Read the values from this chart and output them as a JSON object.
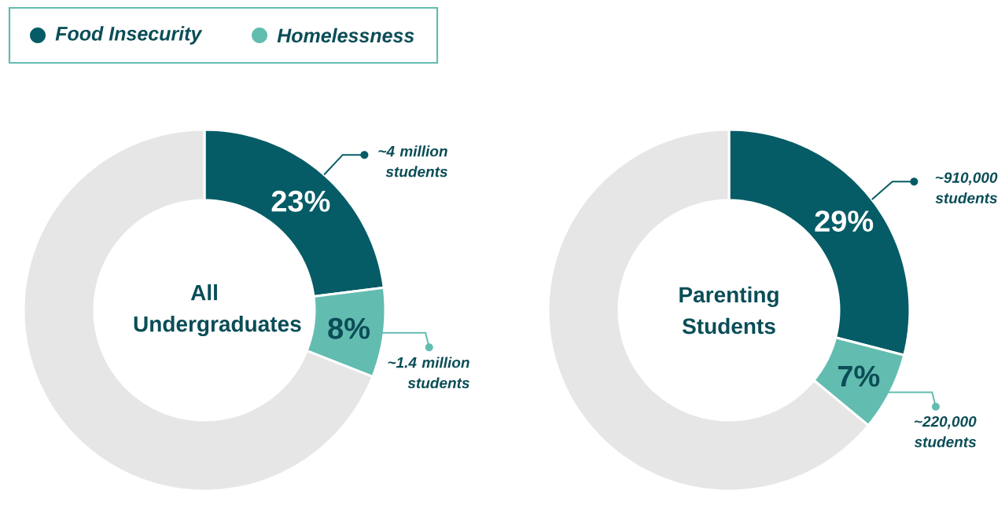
{
  "chart_data": [
    {
      "type": "donut",
      "title": "All Undergraduates",
      "categories": [
        "Food Insecurity",
        "Homelessness",
        null
      ],
      "values": [
        23,
        8,
        69
      ],
      "colors": [
        "#055c66",
        "#63bcb0",
        "#e6e6e6"
      ],
      "value_labels": [
        "23%",
        "8%",
        null
      ],
      "annotations": [
        "~4 million students",
        "~1.4 million students"
      ],
      "legend": "top left"
    },
    {
      "type": "donut",
      "title": "Parenting Students",
      "categories": [
        null,
        null,
        null
      ],
      "values": [
        29,
        7,
        64
      ],
      "colors": [
        "#055c66",
        "#63bcb0",
        "#e6e6e6"
      ],
      "value_labels": [
        "29%",
        "7%",
        null
      ],
      "annotations": [
        "~910,000 students",
        "~220,000 students"
      ]
    }
  ]
}
